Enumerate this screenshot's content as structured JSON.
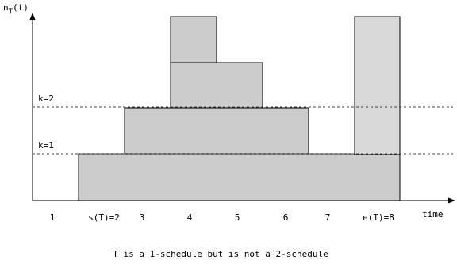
{
  "diagram": {
    "y_axis_label": "n",
    "y_axis_label_sub": "T",
    "y_axis_label_suffix": "(t)",
    "x_axis_label": "time",
    "levels": [
      {
        "label": "k=2"
      },
      {
        "label": "k=1"
      }
    ],
    "ticks": [
      "1",
      "s(T)=2",
      "3",
      "4",
      "5",
      "6",
      "7",
      "e(T)=8"
    ],
    "caption": "T is a 1-schedule but is not a 2-schedule",
    "colors": {
      "block_fill": "#cccccc",
      "block_light_fill": "#d9d9d9",
      "block_stroke": "#000000",
      "axis": "#000000",
      "dashed": "#444444"
    }
  }
}
